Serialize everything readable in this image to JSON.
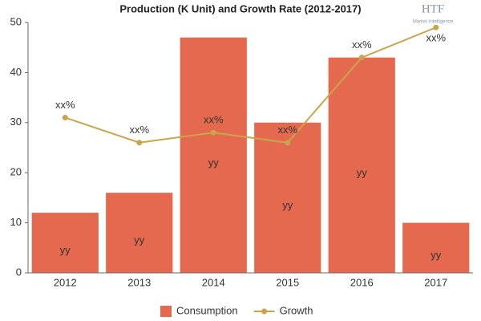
{
  "chart_data": {
    "type": "bar",
    "title": "Production (K Unit) and Growth Rate (2012-2017)",
    "categories": [
      "2012",
      "2013",
      "2014",
      "2015",
      "2016",
      "2017"
    ],
    "series": [
      {
        "name": "Consumption",
        "type": "bar",
        "color": "#e5694f",
        "values": [
          12,
          16,
          47,
          30,
          43,
          10
        ],
        "value_labels": [
          "yy",
          "yy",
          "yy",
          "yy",
          "yy",
          "yy"
        ]
      },
      {
        "name": "Growth",
        "type": "line",
        "color": "#c9a54a",
        "values": [
          31,
          26,
          28,
          26,
          43,
          49
        ],
        "value_labels": [
          "xx%",
          "xx%",
          "xx%",
          "xx%",
          "xx%",
          "xx%"
        ]
      }
    ],
    "ylim": [
      0,
      50
    ],
    "yticks": [
      0,
      10,
      20,
      30,
      40,
      50
    ],
    "grid": false,
    "legend": "bottom"
  },
  "logo": {
    "name": "HTF",
    "tagline": "Market Intelligence"
  }
}
